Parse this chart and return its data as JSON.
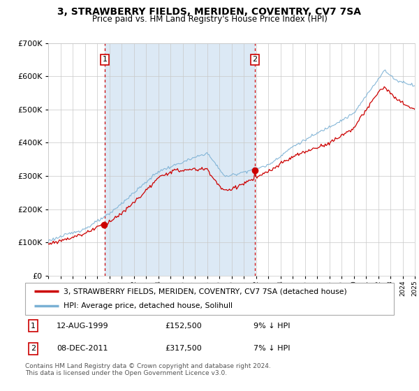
{
  "title": "3, STRAWBERRY FIELDS, MERIDEN, COVENTRY, CV7 7SA",
  "subtitle": "Price paid vs. HM Land Registry's House Price Index (HPI)",
  "legend_line1": "3, STRAWBERRY FIELDS, MERIDEN, COVENTRY, CV7 7SA (detached house)",
  "legend_line2": "HPI: Average price, detached house, Solihull",
  "annotation1_label": "1",
  "annotation1_date": "12-AUG-1999",
  "annotation1_price": "£152,500",
  "annotation1_note": "9% ↓ HPI",
  "annotation2_label": "2",
  "annotation2_date": "08-DEC-2011",
  "annotation2_price": "£317,500",
  "annotation2_note": "7% ↓ HPI",
  "footnote": "Contains HM Land Registry data © Crown copyright and database right 2024.\nThis data is licensed under the Open Government Licence v3.0.",
  "red_color": "#cc0000",
  "blue_color": "#7ab0d4",
  "bg_color": "#dce9f5",
  "grid_color": "#c8c8c8",
  "ylim": [
    0,
    700000
  ],
  "yticks": [
    0,
    100000,
    200000,
    300000,
    400000,
    500000,
    600000,
    700000
  ],
  "sale1_year": 1999.62,
  "sale1_value": 152500,
  "sale2_year": 2011.92,
  "sale2_value": 317500,
  "xstart": 1995,
  "xend": 2025
}
